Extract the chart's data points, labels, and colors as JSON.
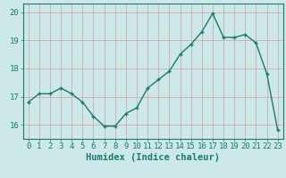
{
  "x": [
    0,
    1,
    2,
    3,
    4,
    5,
    6,
    7,
    8,
    9,
    10,
    11,
    12,
    13,
    14,
    15,
    16,
    17,
    18,
    19,
    20,
    21,
    22,
    23
  ],
  "y": [
    16.8,
    17.1,
    17.1,
    17.3,
    17.1,
    16.8,
    16.3,
    15.95,
    15.95,
    16.4,
    16.6,
    17.3,
    17.6,
    17.9,
    18.5,
    18.85,
    19.3,
    19.95,
    19.1,
    19.1,
    19.2,
    18.9,
    17.8,
    15.8
  ],
  "line_color": "#1a7a6e",
  "bg_color": "#cce8e8",
  "grid_color": "#b0d0d0",
  "grid_color_major": "#c8a0a0",
  "xlabel": "Humidex (Indice chaleur)",
  "ylim": [
    15.5,
    20.3
  ],
  "xlim": [
    -0.5,
    23.5
  ],
  "xticks": [
    0,
    1,
    2,
    3,
    4,
    5,
    6,
    7,
    8,
    9,
    10,
    11,
    12,
    13,
    14,
    15,
    16,
    17,
    18,
    19,
    20,
    21,
    22,
    23
  ],
  "yticks": [
    16,
    17,
    18,
    19,
    20
  ],
  "xlabel_fontsize": 7.5,
  "tick_fontsize": 6.5,
  "marker": "D",
  "marker_size": 2.0,
  "line_width": 1.0
}
